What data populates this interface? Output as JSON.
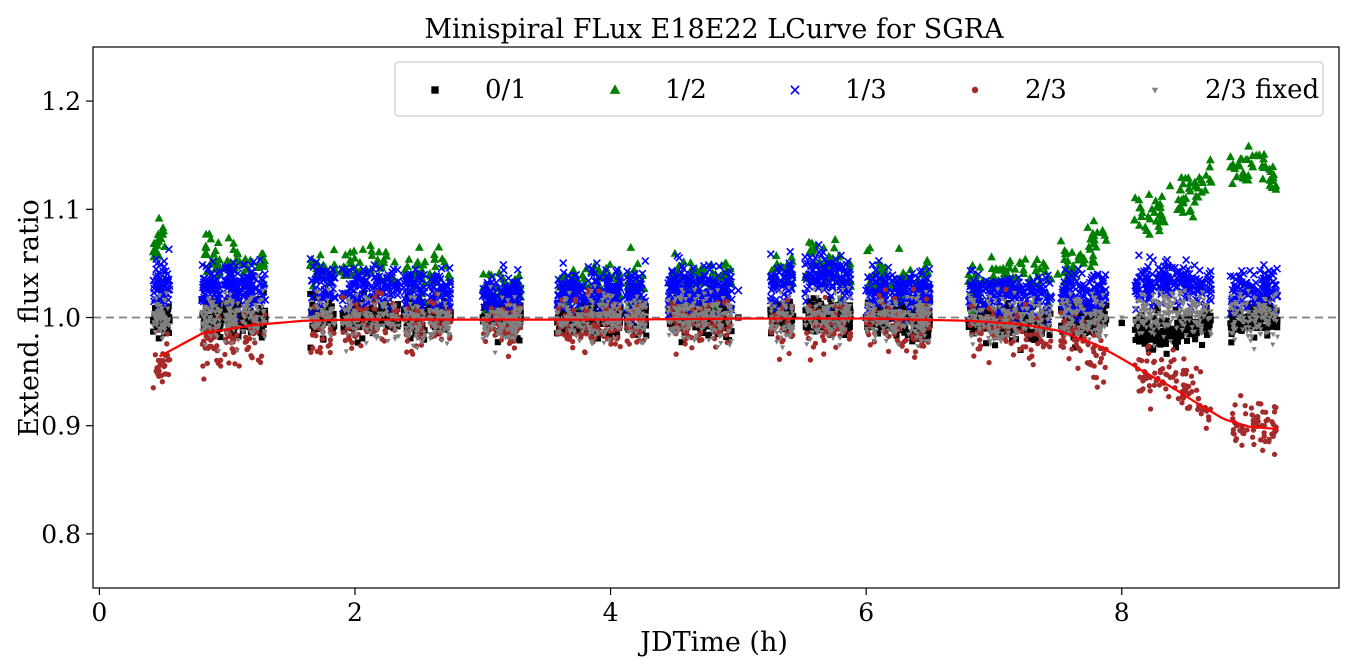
{
  "chart_data": {
    "type": "scatter",
    "title": "Minispiral FLux E18E22 LCurve for SGRA",
    "xlabel": "JDTime (h)",
    "ylabel": "Extend. flux ratio",
    "xlim": [
      -0.05,
      9.7
    ],
    "ylim": [
      0.75,
      1.25
    ],
    "xticks": [
      0,
      2,
      4,
      6,
      8
    ],
    "xtick_labels": [
      "0",
      "2",
      "4",
      "6",
      "8"
    ],
    "yticks": [
      0.8,
      0.9,
      1.0,
      1.1,
      1.2
    ],
    "ytick_labels": [
      "0.8",
      "0.9",
      "1.0",
      "1.1",
      "1.2"
    ],
    "reference_line": {
      "y": 1.0,
      "style": "dashed",
      "color": "#808080"
    },
    "legend_position": "top-right",
    "observation_blocks": [
      [
        0.42,
        0.55
      ],
      [
        0.8,
        0.95
      ],
      [
        0.98,
        1.1
      ],
      [
        1.12,
        1.3
      ],
      [
        1.65,
        1.85
      ],
      [
        1.9,
        2.1
      ],
      [
        2.12,
        2.35
      ],
      [
        2.38,
        2.55
      ],
      [
        2.58,
        2.75
      ],
      [
        3.0,
        3.2
      ],
      [
        3.2,
        3.3
      ],
      [
        3.58,
        3.75
      ],
      [
        3.75,
        3.95
      ],
      [
        3.95,
        4.08
      ],
      [
        4.12,
        4.28
      ],
      [
        4.45,
        4.6
      ],
      [
        4.6,
        4.78
      ],
      [
        4.78,
        4.95
      ],
      [
        5.25,
        5.43
      ],
      [
        5.52,
        5.7
      ],
      [
        5.7,
        5.88
      ],
      [
        6.0,
        6.18
      ],
      [
        6.2,
        6.4
      ],
      [
        6.4,
        6.5
      ],
      [
        6.8,
        7.0
      ],
      [
        7.0,
        7.2
      ],
      [
        7.2,
        7.45
      ],
      [
        7.52,
        7.7
      ],
      [
        7.7,
        7.88
      ],
      [
        8.1,
        8.3
      ],
      [
        8.3,
        8.5
      ],
      [
        8.5,
        8.7
      ],
      [
        8.85,
        9.05
      ],
      [
        9.05,
        9.22
      ]
    ],
    "series": [
      {
        "name": "0/1",
        "marker": "square",
        "color": "#000000",
        "x": [
          0.5,
          1.0,
          2.0,
          3.0,
          4.0,
          5.0,
          6.0,
          7.0,
          8.0,
          8.4,
          9.0,
          9.2
        ],
        "y": [
          1.0,
          1.0,
          1.0,
          1.0,
          1.0,
          1.0,
          1.0,
          0.997,
          0.995,
          0.985,
          1.0,
          1.0
        ]
      },
      {
        "name": "1/2",
        "marker": "triangle-up",
        "color": "#008000",
        "x": [
          0.45,
          0.5,
          0.9,
          1.0,
          1.2,
          1.7,
          2.0,
          2.5,
          3.1,
          3.8,
          4.2,
          4.7,
          5.4,
          5.6,
          6.2,
          7.0,
          7.5,
          7.7,
          7.85,
          8.1,
          8.3,
          8.5,
          8.7,
          8.9,
          9.1,
          9.2
        ],
        "y": [
          1.06,
          1.08,
          1.05,
          1.045,
          1.04,
          1.045,
          1.04,
          1.04,
          1.02,
          1.03,
          1.03,
          1.035,
          1.04,
          1.05,
          1.03,
          1.03,
          1.04,
          1.05,
          1.08,
          1.09,
          1.095,
          1.11,
          1.125,
          1.13,
          1.14,
          1.12
        ]
      },
      {
        "name": "1/3",
        "marker": "x",
        "color": "#0000ff",
        "x": [
          0.5,
          1.0,
          2.0,
          3.0,
          4.0,
          5.0,
          5.6,
          6.0,
          7.0,
          7.7,
          8.3,
          8.6,
          9.0,
          9.2
        ],
        "y": [
          1.03,
          1.03,
          1.03,
          1.02,
          1.025,
          1.025,
          1.04,
          1.025,
          1.02,
          1.02,
          1.035,
          1.03,
          1.025,
          1.025
        ]
      },
      {
        "name": "2/3",
        "marker": "circle",
        "color": "#a52a2a",
        "x": [
          0.5,
          1.0,
          2.0,
          3.0,
          4.0,
          5.0,
          6.0,
          7.0,
          7.6,
          7.8,
          8.2,
          8.4,
          8.6,
          8.9,
          9.1,
          9.2
        ],
        "y": [
          0.96,
          0.985,
          0.998,
          0.998,
          0.997,
          0.999,
          0.999,
          0.995,
          0.985,
          0.965,
          0.945,
          0.945,
          0.925,
          0.9,
          0.9,
          0.895
        ]
      },
      {
        "name": "2/3 fixed",
        "marker": "triangle-down",
        "color": "#808080",
        "x": [
          0.5,
          1.0,
          2.0,
          3.0,
          4.0,
          5.0,
          6.0,
          7.0,
          8.0,
          8.4,
          9.0,
          9.2
        ],
        "y": [
          1.0,
          1.0,
          1.0,
          0.995,
          1.0,
          1.0,
          1.0,
          0.998,
          1.0,
          1.005,
          1.0,
          1.0
        ]
      }
    ],
    "fit_curve": {
      "color": "#ff0000",
      "x": [
        0.47,
        0.8,
        1.2,
        1.6,
        2.0,
        3.0,
        4.0,
        5.0,
        6.0,
        6.8,
        7.2,
        7.5,
        7.8,
        8.0,
        8.2,
        8.4,
        8.6,
        8.8,
        9.0,
        9.22
      ],
      "y": [
        0.964,
        0.985,
        0.993,
        0.997,
        0.998,
        0.998,
        0.998,
        0.999,
        0.999,
        0.997,
        0.994,
        0.988,
        0.975,
        0.962,
        0.948,
        0.935,
        0.92,
        0.906,
        0.899,
        0.897
      ]
    }
  }
}
